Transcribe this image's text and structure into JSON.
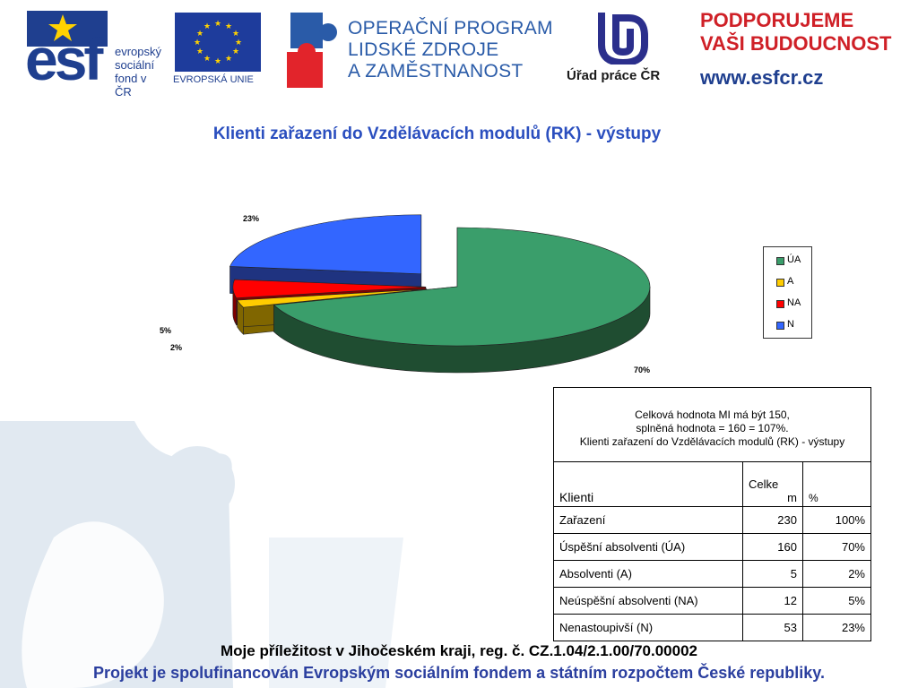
{
  "header": {
    "esf_logo": "esf",
    "esf_lines": [
      "evropský",
      "sociální",
      "fond v ČR"
    ],
    "eu_label": "EVROPSKÁ UNIE",
    "op_lines": [
      "OPERAČNÍ PROGRAM",
      "LIDSKÉ ZDROJE",
      "A ZAMĚSTNANOST"
    ],
    "urad": "Úřad práce ČR",
    "podporujeme": [
      "PODPORUJEME",
      "VAŠI BUDOUCNOST"
    ],
    "web": "www.esfcr.cz"
  },
  "chart_data": {
    "type": "pie",
    "title": "Klienti zařazení do Vzdělávacích modulů (RK) - výstupy",
    "categories": [
      "ÚA",
      "A",
      "NA",
      "N"
    ],
    "values": [
      70,
      2,
      5,
      23
    ],
    "data_labels": [
      "70%",
      "2%",
      "5%",
      "23%"
    ],
    "colors": [
      "#3a9e6b",
      "#ffcc00",
      "#ff0000",
      "#3366ff"
    ],
    "side_colors": [
      "#1f4d31",
      "#806600",
      "#800000",
      "#1f3380"
    ],
    "legend_placement": "right"
  },
  "table": {
    "note_lines": [
      "Celková hodnota MI má být 150,",
      "splněná hodnota = 160 = 107%.",
      "Klienti zařazení do Vzdělávacích modulů (RK) - výstupy"
    ],
    "headers": [
      "Klienti",
      "Celke",
      "m",
      "%"
    ],
    "rows": [
      {
        "label": "Zařazení",
        "count": "230",
        "pct": "100%"
      },
      {
        "label": "Úspěšní absolventi (ÚA)",
        "count": "160",
        "pct": "70%"
      },
      {
        "label": "Absolventi (A)",
        "count": "5",
        "pct": "2%"
      },
      {
        "label": "Neúspěšní absolventi (NA)",
        "count": "12",
        "pct": "5%"
      },
      {
        "label": "Nenastoupivší (N)",
        "count": "53",
        "pct": "23%"
      }
    ]
  },
  "footer": {
    "line1": "Moje příležitost v Jihočeském kraji, reg. č. CZ.1.04/2.1.00/70.00002",
    "line2": "Projekt je spolufinancován Evropským sociálním fondem a státním rozpočtem České republiky."
  }
}
